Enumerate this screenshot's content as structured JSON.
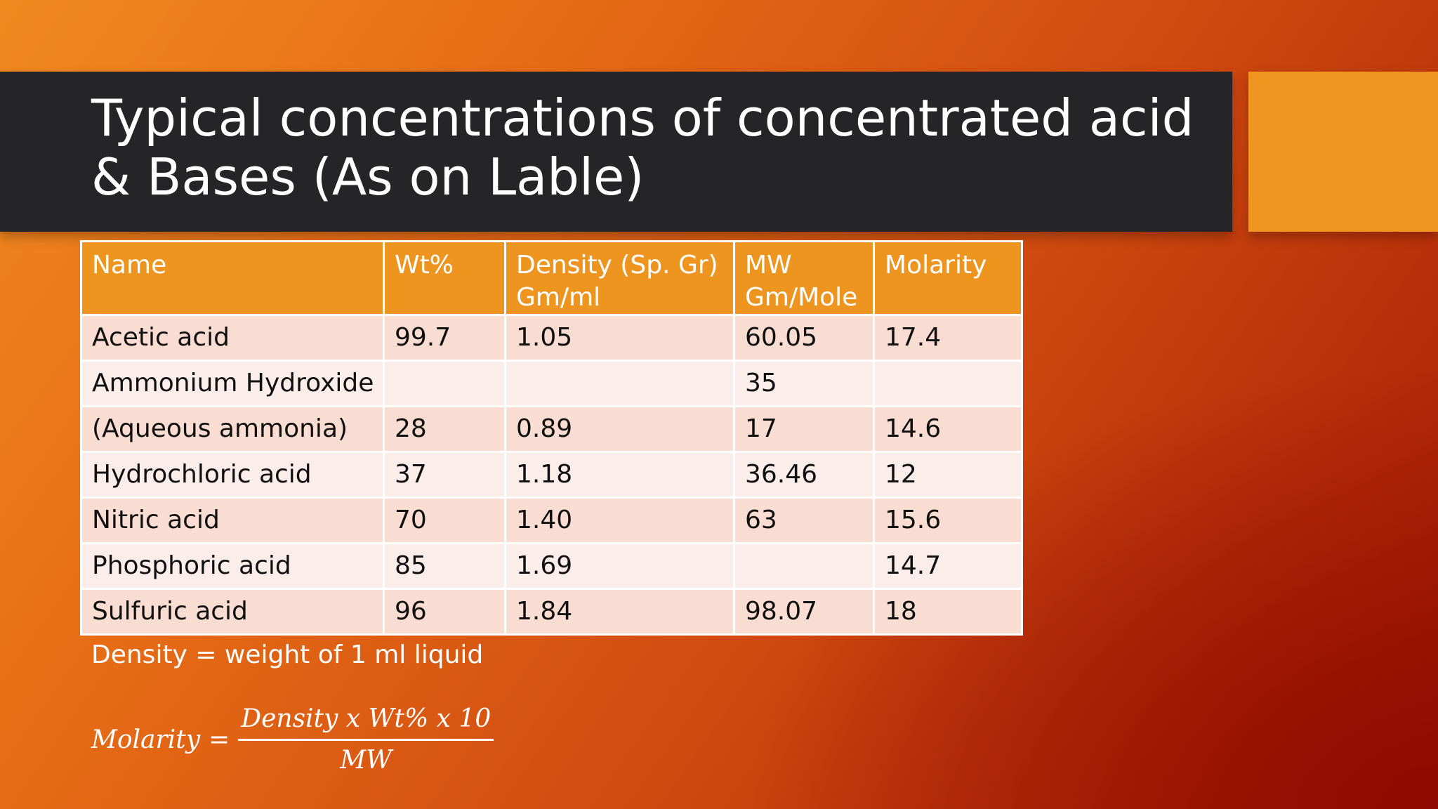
{
  "slide": {
    "title": "Typical concentrations of concentrated acid & Bases (As on Lable)",
    "colors": {
      "title_bar": "#252528",
      "accent": "#f0951f",
      "header_fill": "#ee951f",
      "row_odd": "#f9dcd2",
      "row_even": "#fbeeea"
    }
  },
  "table": {
    "headers": [
      "Name",
      "Wt%",
      "Density (Sp. Gr) Gm/ml",
      "MW Gm/Mole",
      "Molarity"
    ],
    "rows": [
      [
        "Acetic acid",
        "99.7",
        "1.05",
        "60.05",
        "17.4"
      ],
      [
        "Ammonium Hydroxide",
        "",
        "",
        "35",
        ""
      ],
      [
        "(Aqueous ammonia)",
        "28",
        "0.89",
        "17",
        "14.6"
      ],
      [
        "Hydrochloric acid",
        "37",
        "1.18",
        "36.46",
        "12"
      ],
      [
        "Nitric acid",
        "70",
        "1.40",
        "63",
        "15.6"
      ],
      [
        "Phosphoric acid",
        "85",
        "1.69",
        "",
        "14.7"
      ],
      [
        "Sulfuric acid",
        "96",
        "1.84",
        "98.07",
        "18"
      ]
    ]
  },
  "note": "Density = weight of 1 ml liquid",
  "formula": {
    "lhs": "Molarity",
    "equals": "=",
    "numerator": "Density x Wt% x 10",
    "denominator": "MW"
  }
}
